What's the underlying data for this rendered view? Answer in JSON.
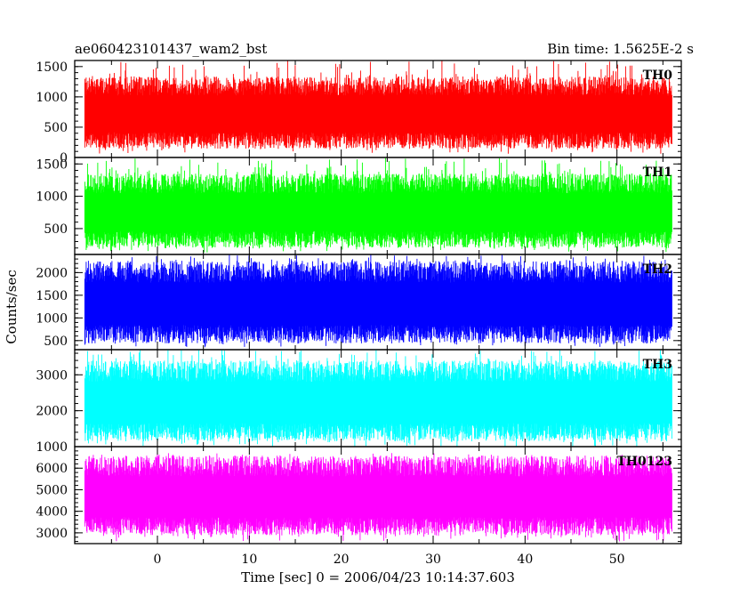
{
  "header": {
    "left": "ae060423101437_wam2_bst",
    "right": "Bin time: 1.5625E-2 s"
  },
  "chart_data": {
    "type": "line",
    "title": "ae060423101437_wam2_bst",
    "subtitle": "Bin time: 1.5625E-2 s",
    "xlabel": "Time [sec] 0 = 2006/04/23 10:14:37.603",
    "ylabel": "Counts/sec",
    "xlim": [
      -9,
      57
    ],
    "x_data_range": [
      -7.9,
      56.0
    ],
    "x_ticks": [
      0,
      10,
      20,
      30,
      40,
      50
    ],
    "x_tick_labels": [
      "0",
      "10",
      "20",
      "30",
      "40",
      "50"
    ],
    "panels": [
      {
        "name": "TH0",
        "color": "#ff0000",
        "ylim": [
          0,
          1600
        ],
        "y_ticks": [
          0,
          500,
          1000,
          1500
        ],
        "y_tick_labels": [
          "0",
          "500",
          "1000",
          "1500"
        ],
        "typical_low": 280,
        "typical_high": 1180,
        "min": 60,
        "max": 1600
      },
      {
        "name": "TH1",
        "color": "#00ff00",
        "ylim": [
          100,
          1600
        ],
        "y_ticks": [
          500,
          1000,
          1500
        ],
        "y_tick_labels": [
          "500",
          "1000",
          "1500"
        ],
        "typical_low": 330,
        "typical_high": 1200,
        "min": 130,
        "max": 1600
      },
      {
        "name": "TH2",
        "color": "#0000ff",
        "ylim": [
          300,
          2400
        ],
        "y_ticks": [
          500,
          1000,
          1500,
          2000
        ],
        "y_tick_labels": [
          "500",
          "1000",
          "1500",
          "2000"
        ],
        "typical_low": 640,
        "typical_high": 2020,
        "min": 350,
        "max": 2400
      },
      {
        "name": "TH3",
        "color": "#00ffff",
        "ylim": [
          1000,
          3700
        ],
        "y_ticks": [
          1000,
          2000,
          3000
        ],
        "y_tick_labels": [
          "1000",
          "2000",
          "3000"
        ],
        "typical_low": 1400,
        "typical_high": 3100,
        "min": 1000,
        "max": 3700
      },
      {
        "name": "TH0123",
        "color": "#ff00ff",
        "ylim": [
          2500,
          7000
        ],
        "y_ticks": [
          3000,
          4000,
          5000,
          6000
        ],
        "y_tick_labels": [
          "3000",
          "4000",
          "5000",
          "6000"
        ],
        "typical_low": 3300,
        "typical_high": 6100,
        "min": 2600,
        "max": 6700
      }
    ]
  }
}
